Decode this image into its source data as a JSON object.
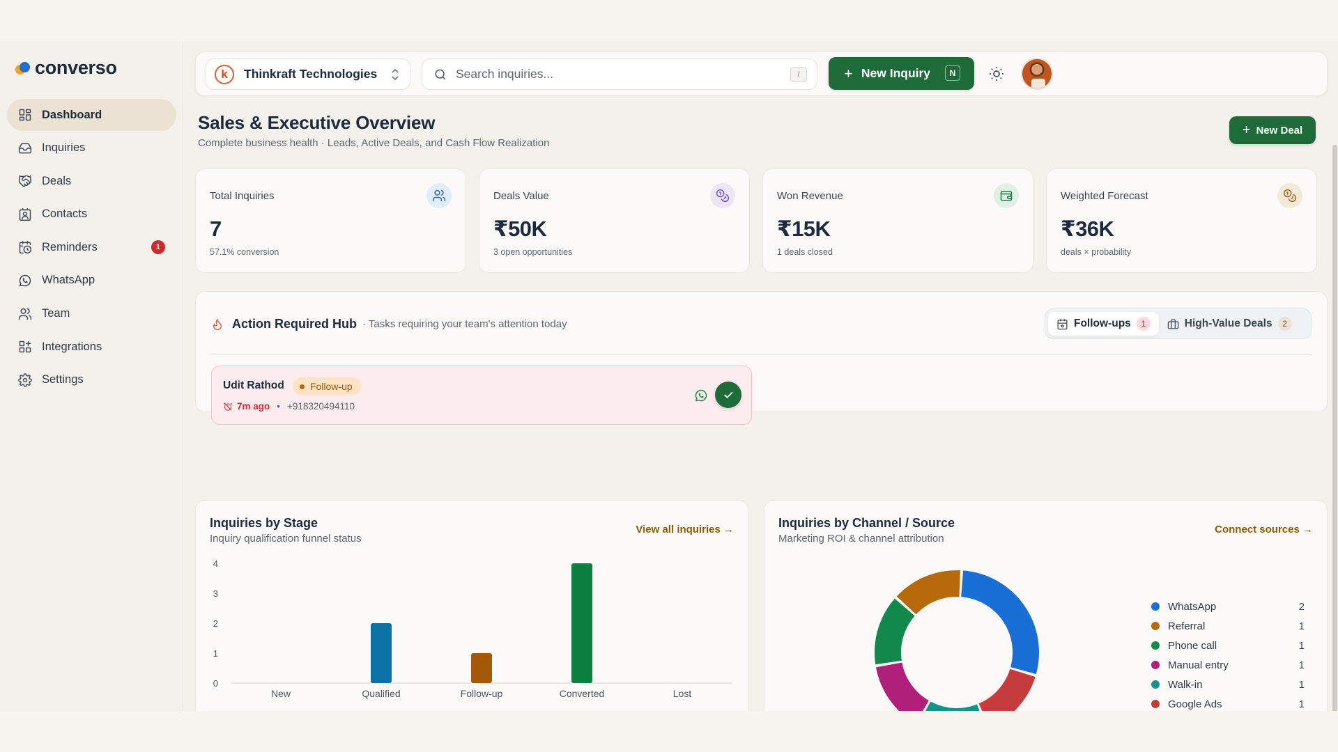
{
  "app": {
    "name": "converso"
  },
  "sidebar": {
    "items": [
      {
        "label": "Dashboard",
        "icon": "dashboard-icon",
        "active": true
      },
      {
        "label": "Inquiries",
        "icon": "inbox-icon"
      },
      {
        "label": "Deals",
        "icon": "handshake-icon"
      },
      {
        "label": "Contacts",
        "icon": "contacts-icon"
      },
      {
        "label": "Reminders",
        "icon": "calendar-clock-icon",
        "badge": "1"
      },
      {
        "label": "WhatsApp",
        "icon": "whatsapp-icon"
      },
      {
        "label": "Team",
        "icon": "team-icon"
      },
      {
        "label": "Integrations",
        "icon": "integrations-icon"
      },
      {
        "label": "Settings",
        "icon": "gear-icon"
      }
    ]
  },
  "topbar": {
    "org_initial": "k",
    "org_name": "Thinkraft Technologies",
    "search_placeholder": "Search inquiries...",
    "search_shortcut": "/",
    "new_inquiry_label": "New Inquiry",
    "new_inquiry_shortcut": "N"
  },
  "page": {
    "title": "Sales & Executive Overview",
    "subtitle": "Complete business health · Leads, Active Deals, and Cash Flow Realization",
    "new_deal_label": "New Deal"
  },
  "kpis": [
    {
      "label": "Total Inquiries",
      "value": "7",
      "sub": "57.1% conversion",
      "icon": "users-icon",
      "icon_bg": "#e3edf6",
      "icon_color": "#2f6aa8"
    },
    {
      "label": "Deals Value",
      "value": "₹50K",
      "sub": "3 open opportunities",
      "icon": "coins-icon",
      "icon_bg": "#ece5f6",
      "icon_color": "#7a55c2"
    },
    {
      "label": "Won Revenue",
      "value": "₹15K",
      "sub": "1 deals closed",
      "icon": "wallet-icon",
      "icon_bg": "#e0f0e5",
      "icon_color": "#1e7a44"
    },
    {
      "label": "Weighted Forecast",
      "value": "₹36K",
      "sub": "deals × probability",
      "icon": "coins-icon",
      "icon_bg": "#f3e9d8",
      "icon_color": "#a0661a"
    }
  ],
  "hub": {
    "title": "Action Required Hub",
    "desc": "· Tasks requiring your team's attention today",
    "tabs": [
      {
        "label": "Follow-ups",
        "count": "1",
        "icon": "calendar-icon"
      },
      {
        "label": "High-Value Deals",
        "count": "2",
        "icon": "briefcase-icon"
      }
    ],
    "followup": {
      "name": "Udit Rathod",
      "tag": "Follow-up",
      "ago": "7m ago",
      "separator": "•",
      "phone": "+918320494110"
    }
  },
  "stage_panel": {
    "title": "Inquiries by Stage",
    "subtitle": "Inquiry qualification funnel status",
    "link": "View all inquiries →"
  },
  "channel_panel": {
    "title": "Inquiries by Channel / Source",
    "subtitle": "Marketing ROI & channel attribution",
    "link": "Connect sources →"
  },
  "chart_data": [
    {
      "type": "bar",
      "categories": [
        "New",
        "Qualified",
        "Follow-up",
        "Converted",
        "Lost"
      ],
      "values": [
        0,
        2,
        1,
        4,
        0
      ],
      "colors": [
        "#1f6fd1",
        "#0a72a6",
        "#a4580a",
        "#0b8040",
        "#c0392b"
      ],
      "yticks": [
        0,
        1,
        2,
        3,
        4
      ],
      "ylim": [
        0,
        4
      ],
      "grid": false
    },
    {
      "type": "pie",
      "donut": true,
      "labels": [
        "WhatsApp",
        "Google Ads",
        "Walk-in",
        "Manual entry",
        "Phone call",
        "Referral"
      ],
      "values": [
        2,
        1,
        1,
        1,
        1,
        1
      ],
      "colors": [
        "#1a6fd6",
        "#c63c3c",
        "#13938c",
        "#b0207a",
        "#12884a",
        "#b66a0c"
      ]
    }
  ],
  "legend": [
    {
      "label": "WhatsApp",
      "value": "2",
      "color": "#1a6fd6"
    },
    {
      "label": "Referral",
      "value": "1",
      "color": "#b66a0c"
    },
    {
      "label": "Phone call",
      "value": "1",
      "color": "#12884a"
    },
    {
      "label": "Manual entry",
      "value": "1",
      "color": "#b0207a"
    },
    {
      "label": "Walk-in",
      "value": "1",
      "color": "#13938c"
    },
    {
      "label": "Google Ads",
      "value": "1",
      "color": "#c63c3c"
    }
  ]
}
